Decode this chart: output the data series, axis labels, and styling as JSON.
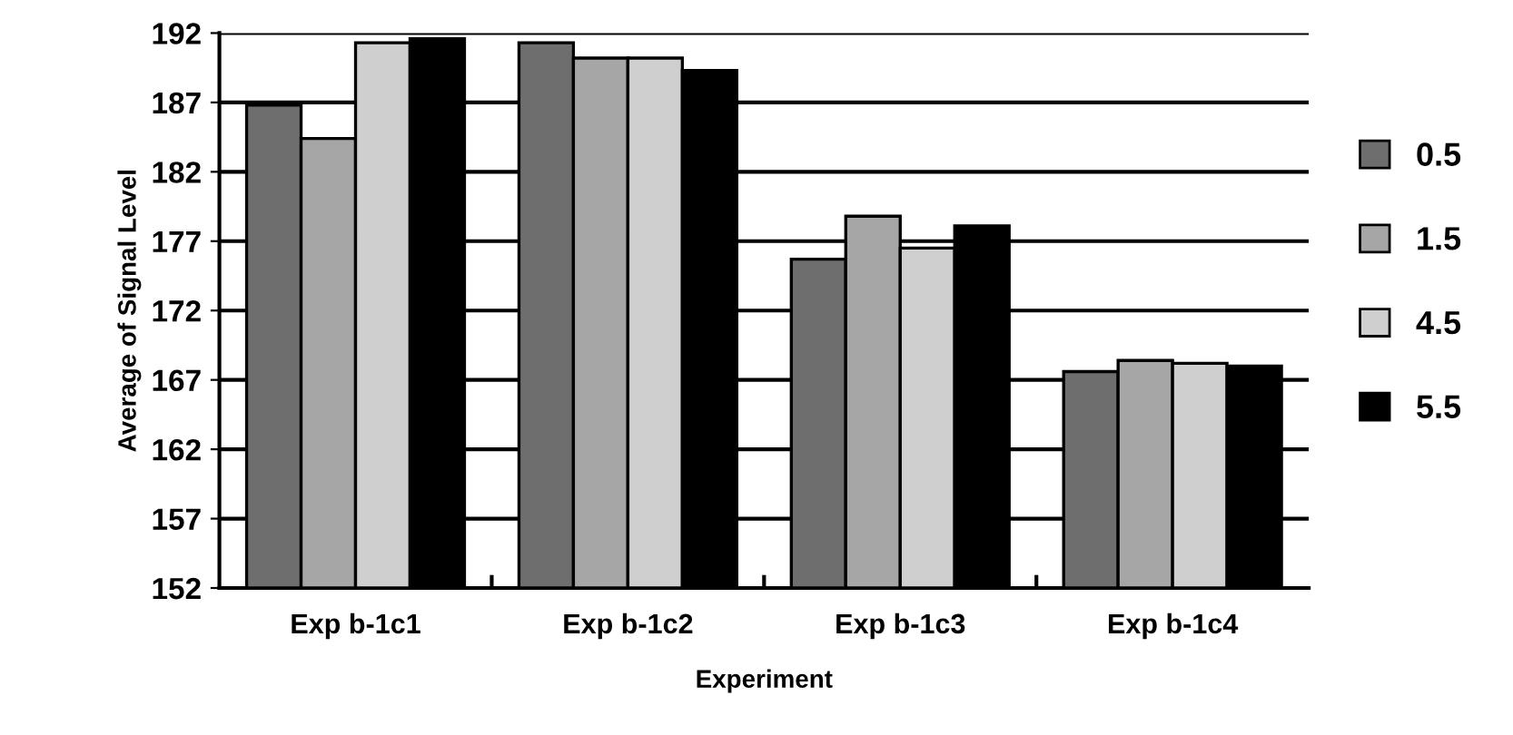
{
  "chart_data": {
    "type": "bar",
    "xlabel": "Experiment",
    "ylabel": "Average of Signal Level",
    "categories": [
      "Exp b-1c1",
      "Exp b-1c2",
      "Exp b-1c3",
      "Exp b-1c4"
    ],
    "series": [
      {
        "name": "0.5",
        "color": "#6e6e6e",
        "values": [
          186.8,
          191.3,
          175.7,
          167.6
        ]
      },
      {
        "name": "1.5",
        "color": "#a6a6a6",
        "values": [
          184.4,
          190.2,
          178.8,
          168.4
        ]
      },
      {
        "name": "4.5",
        "color": "#cfcfcf",
        "values": [
          191.3,
          190.2,
          176.5,
          168.2
        ]
      },
      {
        "name": "5.5",
        "color": "#000000",
        "values": [
          191.6,
          189.3,
          178.1,
          168.0
        ]
      }
    ],
    "ylim": [
      152,
      192
    ],
    "yticks": [
      152,
      157,
      162,
      167,
      172,
      177,
      182,
      187,
      192
    ],
    "grid": "y",
    "legend": "right"
  }
}
